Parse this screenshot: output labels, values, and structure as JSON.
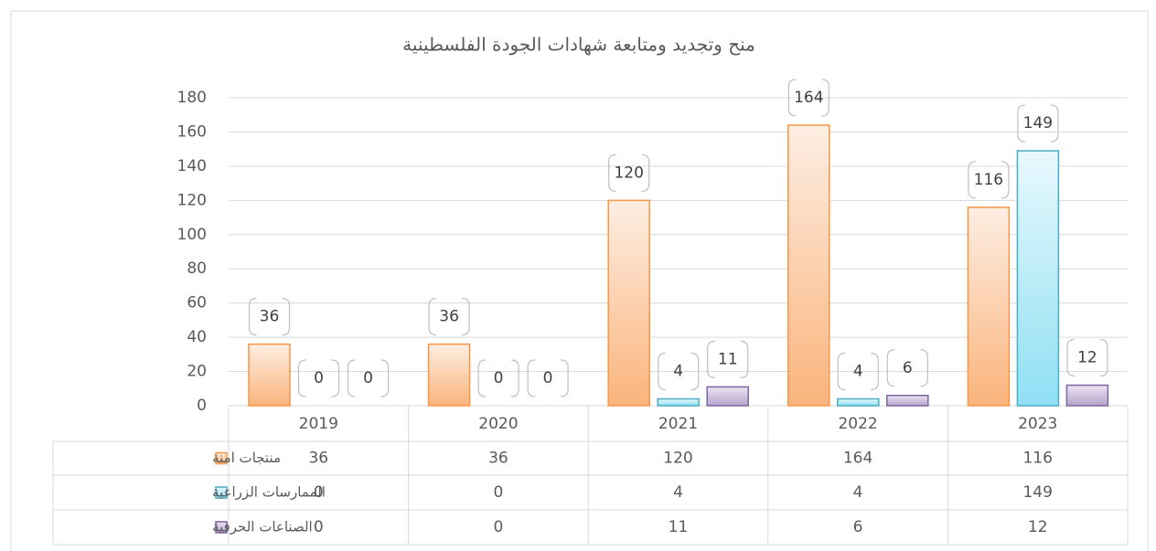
{
  "chart_data": {
    "type": "bar",
    "title": "منح وتجديد ومتابعة شهادات الجودة الفلسطينية",
    "categories": [
      "2019",
      "2020",
      "2021",
      "2022",
      "2023"
    ],
    "series": [
      {
        "name": "منتجات امنة",
        "color": "#f79646",
        "values": [
          36,
          36,
          120,
          164,
          116
        ]
      },
      {
        "name": "الممارسات الزراعية",
        "color": "#4bacc6",
        "values": [
          0,
          0,
          4,
          4,
          149
        ]
      },
      {
        "name": "الصناعات الحرفية",
        "color": "#8064a2",
        "values": [
          0,
          0,
          11,
          6,
          12
        ]
      }
    ],
    "ylim": [
      0,
      180
    ],
    "yticks": [
      0,
      20,
      40,
      60,
      80,
      100,
      120,
      140,
      160,
      180
    ],
    "grid": true
  }
}
